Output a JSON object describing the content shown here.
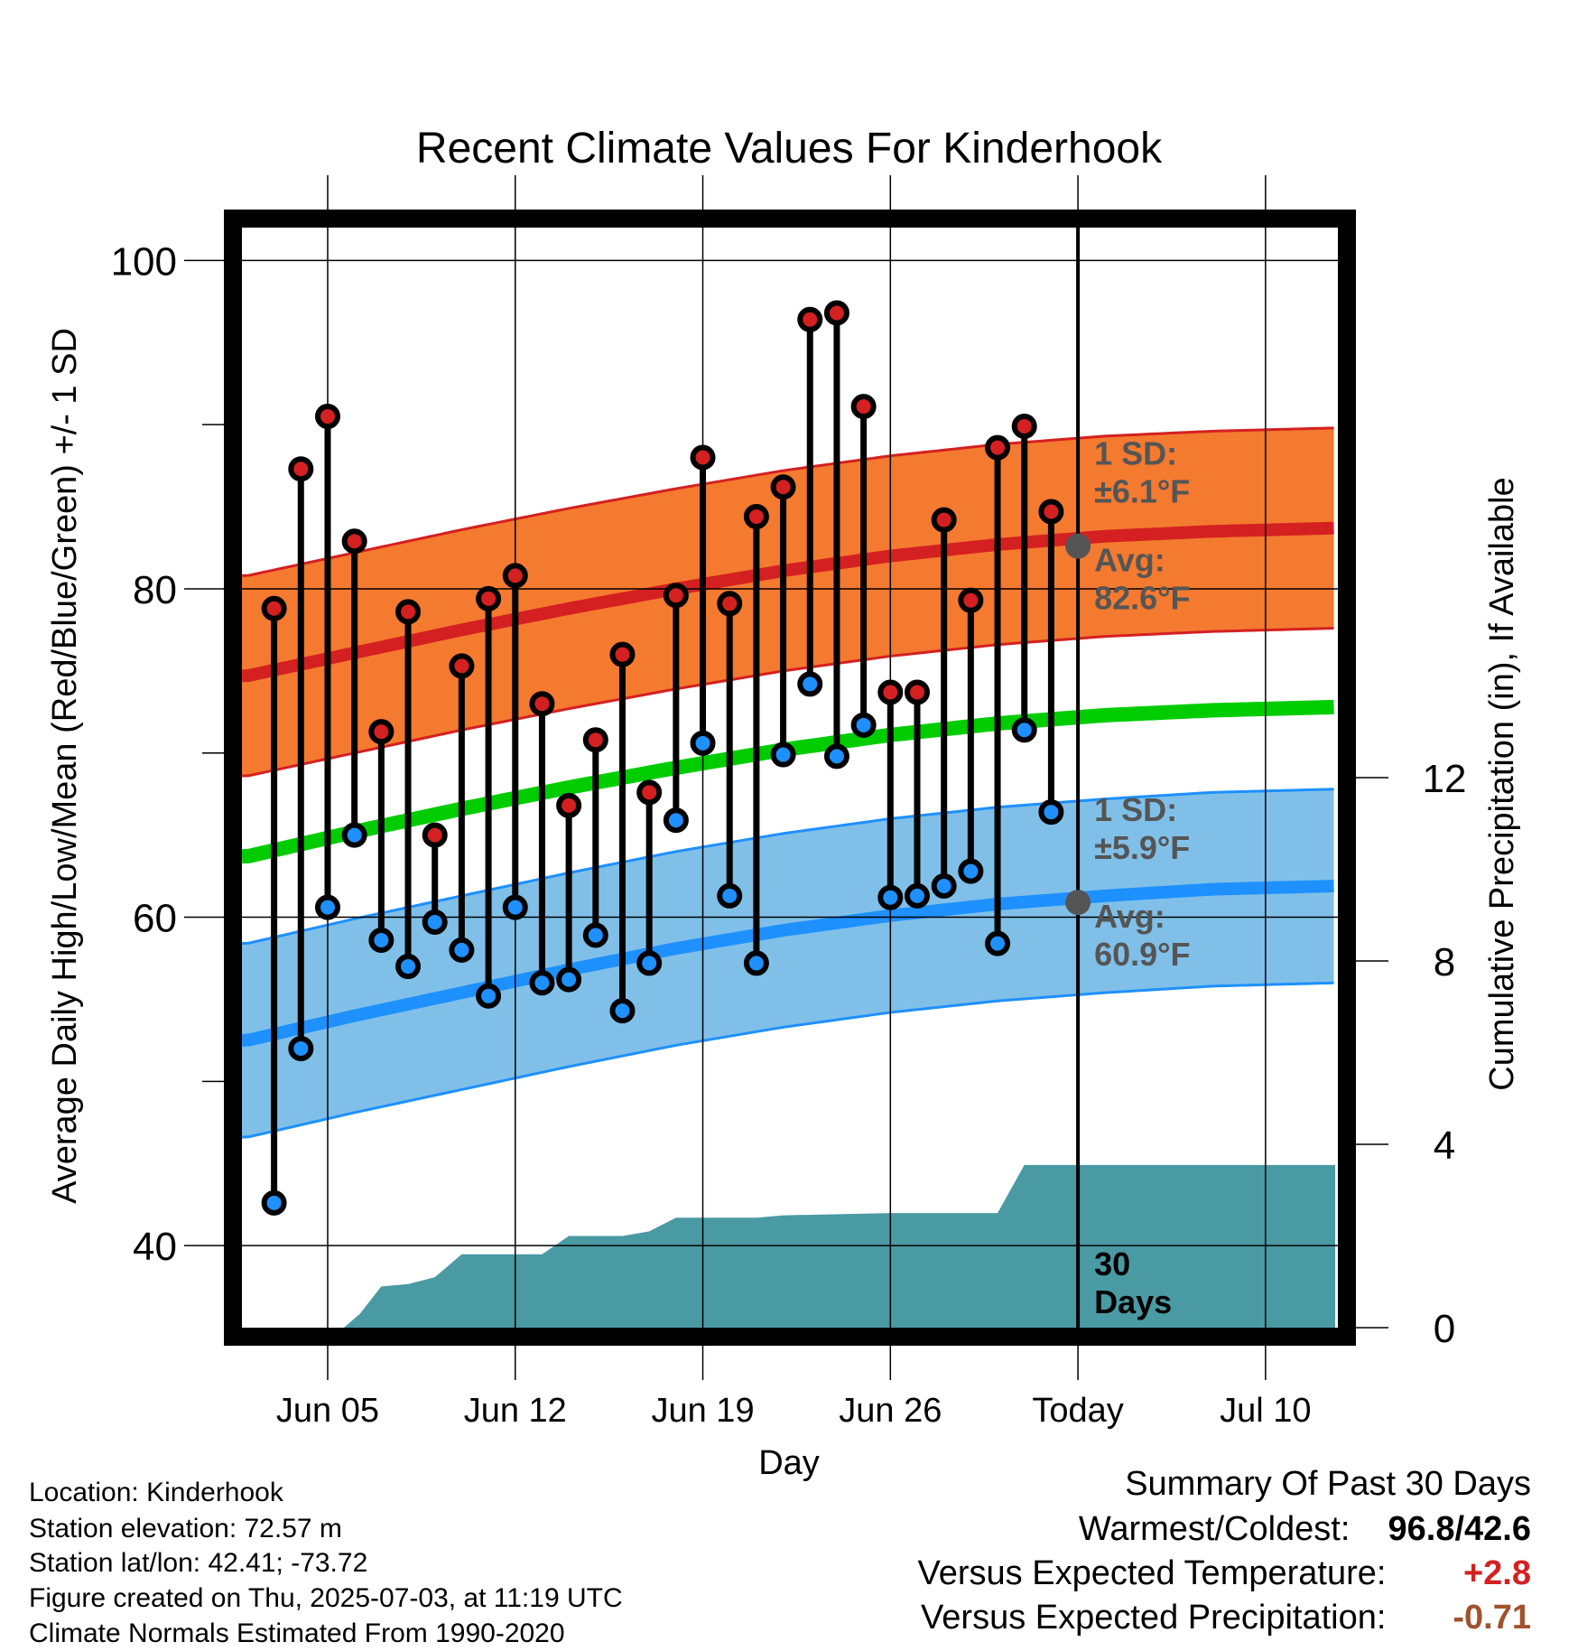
{
  "chart_data": {
    "type": "line",
    "title": "Recent Climate Values For Kinderhook",
    "xlabel": "Day",
    "ylabel_left": "Average Daily High/Low/Mean (Red/Blue/Green) +/- 1 SD",
    "ylabel_right": "Cumulative Precipitation (in), If Available",
    "x_tick_labels": [
      "Jun 05",
      "Jun 12",
      "Jun 19",
      "Jun 26",
      "Today",
      "Jul 10"
    ],
    "x_tick_days": [
      5,
      12,
      19,
      26,
      33,
      40
    ],
    "x_range": [
      1.8,
      42.7
    ],
    "ylim_left": [
      35,
      102
    ],
    "yticks_left": [
      40,
      60,
      80,
      100
    ],
    "ylim_right": [
      0,
      24
    ],
    "yticks_right": [
      0,
      4,
      8,
      12
    ],
    "grid": true,
    "days": [
      3,
      4,
      5,
      6,
      7,
      8,
      9,
      10,
      11,
      12,
      13,
      14,
      15,
      16,
      17,
      18,
      19,
      20,
      21,
      22,
      23,
      24,
      25,
      26,
      27,
      28,
      29,
      30,
      31,
      32
    ],
    "daily_high": [
      78.8,
      87.3,
      90.5,
      82.9,
      71.3,
      78.6,
      65.0,
      75.3,
      79.4,
      80.8,
      73.0,
      66.8,
      70.8,
      76.0,
      67.6,
      79.6,
      88.0,
      79.1,
      84.4,
      86.2,
      96.4,
      96.8,
      91.1,
      73.7,
      73.7,
      84.2,
      79.3,
      88.6,
      89.9,
      84.7
    ],
    "daily_low": [
      42.6,
      52.0,
      60.6,
      65.0,
      58.6,
      57.0,
      59.7,
      58.0,
      55.2,
      60.6,
      56.0,
      56.2,
      58.9,
      54.3,
      57.2,
      65.9,
      70.6,
      61.3,
      57.2,
      69.9,
      74.2,
      69.8,
      71.7,
      61.2,
      61.3,
      61.9,
      62.8,
      58.4,
      71.4,
      66.4
    ],
    "normal_high": {
      "days": [
        2,
        6,
        10,
        14,
        18,
        22,
        26,
        30,
        34,
        38,
        42.6
      ],
      "values": [
        74.7,
        76.1,
        77.5,
        78.8,
        80.0,
        81.1,
        82.0,
        82.7,
        83.2,
        83.5,
        83.7
      ]
    },
    "normal_low": {
      "days": [
        2,
        6,
        10,
        14,
        18,
        22,
        26,
        30,
        34,
        38,
        42.6
      ],
      "values": [
        52.5,
        54.0,
        55.4,
        56.8,
        58.1,
        59.2,
        60.1,
        60.8,
        61.3,
        61.7,
        61.9
      ]
    },
    "normal_mean": {
      "days": [
        2,
        6,
        10,
        14,
        18,
        22,
        26,
        30,
        34,
        38,
        42.6
      ],
      "values": [
        63.7,
        65.2,
        66.6,
        67.9,
        69.1,
        70.2,
        71.1,
        71.8,
        72.3,
        72.6,
        72.8
      ]
    },
    "sd_high": 6.1,
    "sd_low": 5.9,
    "cumulative_precip": {
      "days": [
        2,
        5.6,
        6.2,
        7.0,
        8.0,
        9.0,
        10.0,
        11.0,
        12.0,
        13.0,
        14.0,
        15.0,
        16.0,
        17.0,
        18.0,
        19.0,
        20.0,
        21.0,
        22.0,
        26.0,
        30.0,
        31.0,
        42.6
      ],
      "values": [
        0,
        0,
        0.3,
        0.9,
        0.95,
        1.1,
        1.6,
        1.6,
        1.6,
        1.6,
        2.0,
        2.0,
        2.0,
        2.1,
        2.4,
        2.4,
        2.4,
        2.4,
        2.45,
        2.5,
        2.5,
        3.55,
        3.55
      ]
    },
    "annotations": {
      "high_sd_label": "1 SD:",
      "high_sd_value": "±6.1°F",
      "high_avg_label": "Avg:",
      "high_avg_value": "82.6°F",
      "high_avg_today": 82.6,
      "low_sd_label": "1 SD:",
      "low_sd_value": "±5.9°F",
      "low_avg_label": "Avg:",
      "low_avg_value": "60.9°F",
      "low_avg_today": 60.9,
      "window_count": "30",
      "window_unit": "Days"
    },
    "colors": {
      "high": "#d42020",
      "high_band": "#f47a30",
      "low": "#1e90ff",
      "low_band": "#80c0e8",
      "mean": "#00cc00",
      "precip": "#4a9aa4",
      "annotation": "#555555"
    }
  },
  "meta": {
    "location": "Location: Kinderhook",
    "elevation": "Station elevation: 72.57 m",
    "latlon": "Station lat/lon: 42.41; -73.72",
    "created": "Figure created on Thu, 2025-07-03, at 11:19 UTC",
    "normals": "Climate Normals Estimated From 1990-2020"
  },
  "summary": {
    "heading": "Summary Of Past 30 Days",
    "warm_cold_label": "Warmest/Coldest:",
    "warm_cold_value": "96.8/42.6",
    "temp_label": "Versus Expected Temperature:",
    "temp_value": "+2.8",
    "temp_color": "#d42020",
    "precip_label": "Versus Expected Precipitation:",
    "precip_value": "-0.71",
    "precip_color": "#a0522d"
  }
}
